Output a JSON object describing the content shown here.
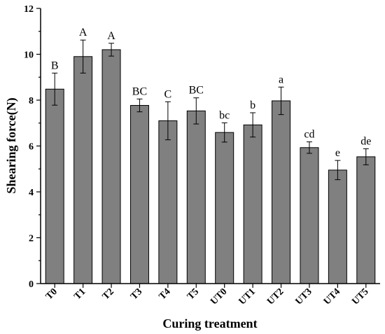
{
  "chart_data": {
    "type": "bar",
    "xlabel": "Curing treatment",
    "ylabel": "Shearing force(N)",
    "ylim": [
      0,
      12
    ],
    "yticks": [
      0,
      2,
      4,
      6,
      8,
      10,
      12
    ],
    "grid": false,
    "bar_color": "#808080",
    "categories": [
      "T0",
      "T1",
      "T2",
      "T3",
      "T4",
      "T5",
      "UT0",
      "UT1",
      "UT2",
      "UT3",
      "UT4",
      "UT5"
    ],
    "values": [
      8.48,
      9.9,
      10.2,
      7.77,
      7.1,
      7.53,
      6.59,
      6.92,
      7.97,
      5.93,
      4.95,
      5.53
    ],
    "errors": [
      0.7,
      0.72,
      0.28,
      0.28,
      0.83,
      0.57,
      0.42,
      0.53,
      0.6,
      0.25,
      0.42,
      0.35
    ],
    "significance_labels": [
      "B",
      "A",
      "A",
      "BC",
      "C",
      "BC",
      "bc",
      "b",
      "a",
      "cd",
      "e",
      "de"
    ]
  }
}
